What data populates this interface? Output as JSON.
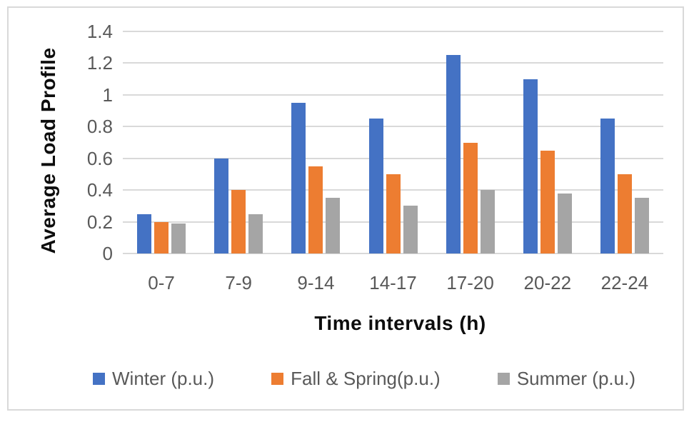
{
  "chart_data": {
    "type": "bar",
    "title": "",
    "xlabel": "Time intervals (h)",
    "ylabel": "Average Load Profile",
    "categories": [
      "0-7",
      "7-9",
      "9-14",
      "14-17",
      "17-20",
      "20-22",
      "22-24"
    ],
    "series": [
      {
        "name": "Winter (p.u.)",
        "color": "#4472C4",
        "values": [
          0.25,
          0.6,
          0.95,
          0.85,
          1.25,
          1.1,
          0.85
        ]
      },
      {
        "name": "Fall & Spring(p.u.)",
        "color": "#ED7D31",
        "values": [
          0.2,
          0.4,
          0.55,
          0.5,
          0.7,
          0.65,
          0.5
        ]
      },
      {
        "name": "Summer (p.u.)",
        "color": "#A5A5A5",
        "values": [
          0.19,
          0.25,
          0.35,
          0.3,
          0.4,
          0.38,
          0.35
        ]
      }
    ],
    "ylim": [
      0,
      1.4
    ],
    "yticks": [
      "0",
      "0.2",
      "0.4",
      "0.6",
      "0.8",
      "1",
      "1.2",
      "1.4"
    ],
    "grid": true,
    "legend_position": "bottom"
  },
  "colors": {
    "grid": "#D9D9D9",
    "tick_text": "#595959",
    "legend_text": "#595959",
    "axis_title_text": "#0D0D0D",
    "frame_border": "#D9D9D9",
    "background": "#FFFFFF"
  }
}
